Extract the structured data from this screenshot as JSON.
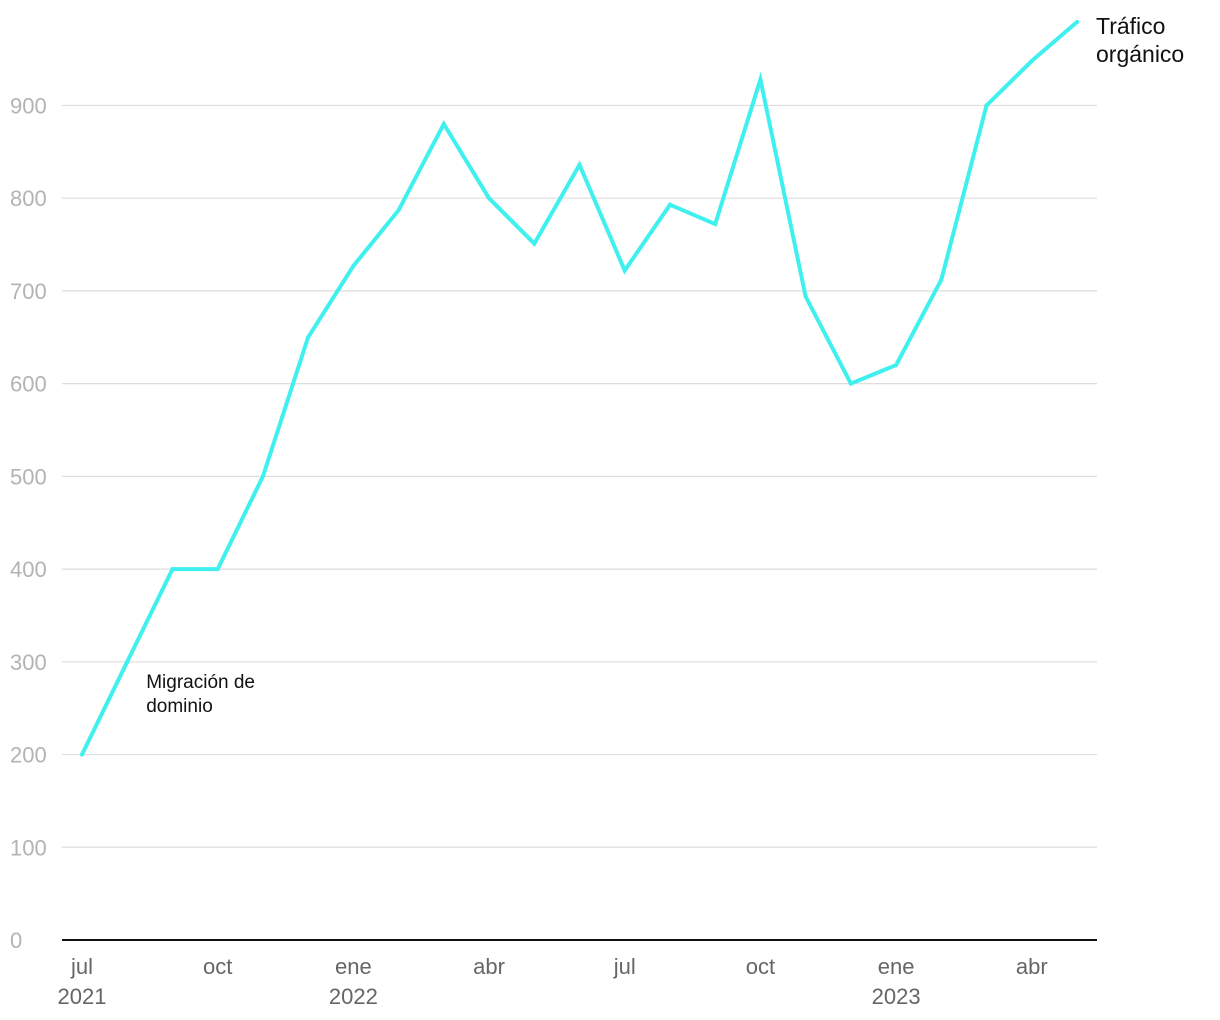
{
  "chart_data": {
    "type": "line",
    "x": [
      "2021-07",
      "2021-08",
      "2021-09",
      "2021-10",
      "2021-11",
      "2021-12",
      "2022-01",
      "2022-02",
      "2022-03",
      "2022-04",
      "2022-05",
      "2022-06",
      "2022-07",
      "2022-08",
      "2022-09",
      "2022-10",
      "2022-11",
      "2022-12",
      "2023-01",
      "2023-02",
      "2023-03",
      "2023-04",
      "2023-05"
    ],
    "series": [
      {
        "name": "Tráfico orgánico",
        "color": "#3ff0ef",
        "values": [
          200,
          300,
          400,
          400,
          500,
          650,
          727,
          787,
          880,
          800,
          751,
          836,
          722,
          793,
          772,
          928,
          694,
          600,
          620,
          712,
          900,
          948,
          990
        ]
      }
    ],
    "series_label_lines": [
      "Tráfico",
      "orgánico"
    ],
    "ylim": [
      0,
      990
    ],
    "yticks": [
      0,
      100,
      200,
      300,
      400,
      500,
      600,
      700,
      800,
      900
    ],
    "xticks": [
      {
        "x": "2021-07",
        "line1": "jul",
        "line2": "2021"
      },
      {
        "x": "2021-10",
        "line1": "oct",
        "line2": ""
      },
      {
        "x": "2022-01",
        "line1": "ene",
        "line2": "2022"
      },
      {
        "x": "2022-04",
        "line1": "abr",
        "line2": ""
      },
      {
        "x": "2022-07",
        "line1": "jul",
        "line2": ""
      },
      {
        "x": "2022-10",
        "line1": "oct",
        "line2": ""
      },
      {
        "x": "2023-01",
        "line1": "ene",
        "line2": "2023"
      },
      {
        "x": "2023-04",
        "line1": "abr",
        "line2": ""
      }
    ],
    "annotations": [
      {
        "x": "2021-08",
        "y": 300,
        "lines": [
          "Migración de",
          "dominio"
        ]
      }
    ],
    "grid": true,
    "legend": "direct label at line end",
    "title": "",
    "xlabel": "",
    "ylabel": ""
  }
}
